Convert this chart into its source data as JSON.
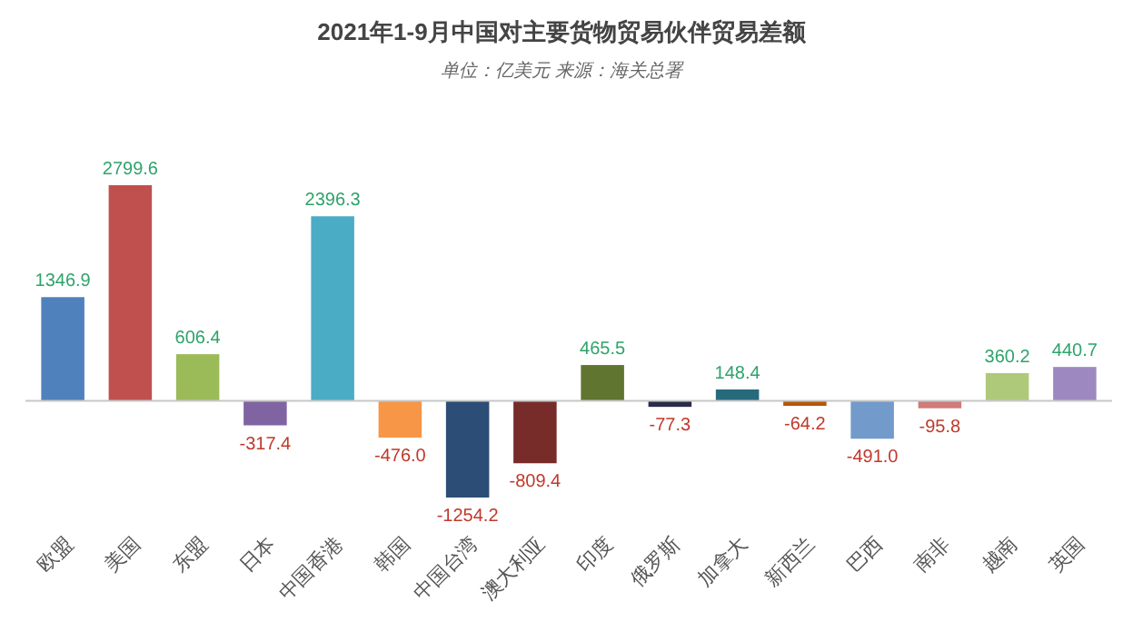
{
  "chart_data": {
    "type": "bar",
    "title": "2021年1-9月中国对主要货物贸易伙伴贸易差额",
    "subtitle": "单位：亿美元 来源：海关总署",
    "categories": [
      "欧盟",
      "美国",
      "东盟",
      "日本",
      "中国香港",
      "韩国",
      "中国台湾",
      "澳大利亚",
      "印度",
      "俄罗斯",
      "加拿大",
      "新西兰",
      "巴西",
      "南非",
      "越南",
      "英国"
    ],
    "values": [
      1346.9,
      2799.6,
      606.4,
      -317.4,
      2396.3,
      -476.0,
      -1254.2,
      -809.4,
      465.5,
      -77.3,
      148.4,
      -64.2,
      -491.0,
      -95.8,
      360.2,
      440.7
    ],
    "colors": [
      "#4f81bd",
      "#c0504d",
      "#9bbb59",
      "#8064a2",
      "#4bacc6",
      "#f79646",
      "#2c4d75",
      "#772c2a",
      "#5f7530",
      "#2a2c4a",
      "#276a7c",
      "#b65708",
      "#729aca",
      "#cf7b79",
      "#afc97a",
      "#9d89bf"
    ],
    "value_labels": [
      "1346.9",
      "2799.6",
      "606.4",
      "-317.4",
      "2396.3",
      "-476.0",
      "-1254.2",
      "-809.4",
      "465.5",
      "-77.3",
      "148.4",
      "-64.2",
      "-491.0",
      "-95.8",
      "360.2",
      "440.7"
    ]
  }
}
